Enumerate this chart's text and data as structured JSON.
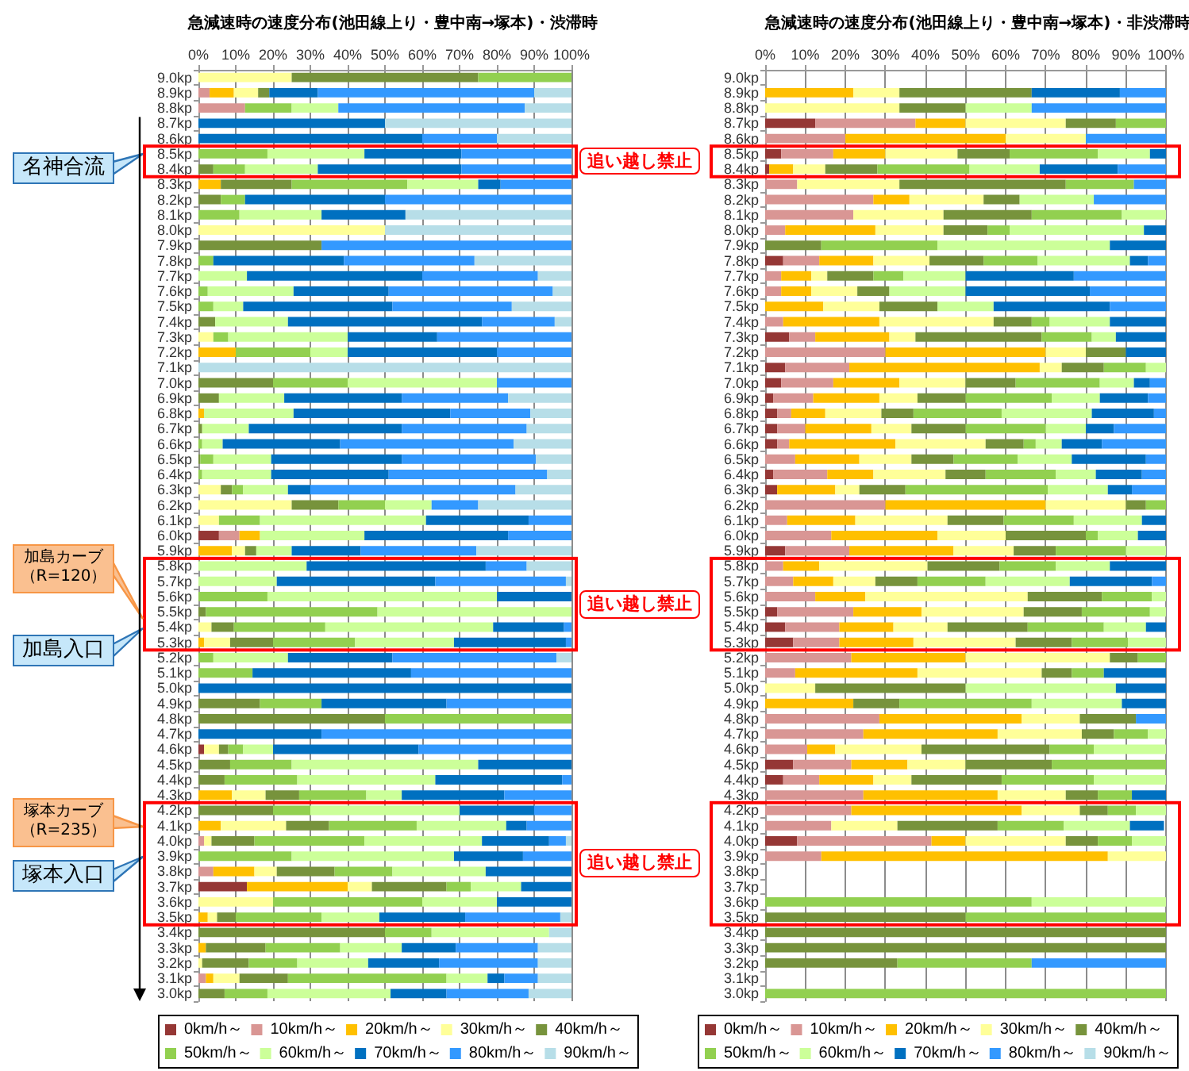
{
  "chart_data": [
    {
      "type": "bar",
      "orientation": "horizontal",
      "stacked": true,
      "title": "急減速時の速度分布(池田線上り・豊中南→塚本)・渋滞時",
      "categories": [
        "9.0kp",
        "8.9kp",
        "8.8kp",
        "8.7kp",
        "8.6kp",
        "8.5kp",
        "8.4kp",
        "8.3kp",
        "8.2kp",
        "8.1kp",
        "8.0kp",
        "7.9kp",
        "7.8kp",
        "7.7kp",
        "7.6kp",
        "7.5kp",
        "7.4kp",
        "7.3kp",
        "7.2kp",
        "7.1kp",
        "7.0kp",
        "6.9kp",
        "6.8kp",
        "6.7kp",
        "6.6kp",
        "6.5kp",
        "6.4kp",
        "6.3kp",
        "6.2kp",
        "6.1kp",
        "6.0kp",
        "5.9kp",
        "5.8kp",
        "5.7kp",
        "5.6kp",
        "5.5kp",
        "5.4kp",
        "5.3kp",
        "5.2kp",
        "5.1kp",
        "5.0kp",
        "4.9kp",
        "4.8kp",
        "4.7kp",
        "4.6kp",
        "4.5kp",
        "4.4kp",
        "4.3kp",
        "4.2kp",
        "4.1kp",
        "4.0kp",
        "3.9kp",
        "3.8kp",
        "3.7kp",
        "3.6kp",
        "3.5kp",
        "3.4kp",
        "3.3kp",
        "3.2kp",
        "3.1kp",
        "3.0kp"
      ],
      "series": [
        {
          "name": "0km/h～",
          "color": "#953735",
          "values": [
            0,
            0,
            0,
            0,
            0,
            0,
            0,
            0,
            0,
            0,
            0,
            0,
            0,
            0,
            0,
            0,
            0,
            0,
            0,
            0,
            0,
            0,
            0,
            0,
            0,
            0,
            0,
            0,
            0,
            0,
            5.5,
            0,
            0,
            0,
            0,
            0,
            0,
            0,
            0,
            0,
            0,
            0,
            0,
            0,
            1.5,
            0,
            0,
            0,
            0,
            0,
            0,
            0,
            0,
            13,
            0,
            0,
            0,
            0,
            0,
            0,
            0
          ]
        },
        {
          "name": "10km/h～",
          "color": "#d99694",
          "values": [
            0,
            3,
            12.5,
            0,
            0,
            0,
            0,
            0,
            0,
            0,
            0,
            0,
            0,
            0,
            0,
            0,
            0,
            0,
            0,
            0,
            0,
            0,
            0,
            0,
            0,
            0,
            0,
            0,
            0,
            0,
            5.5,
            0,
            0,
            0,
            0,
            0,
            0,
            0,
            0,
            0,
            0,
            0,
            0,
            0,
            0,
            0,
            0,
            0,
            0,
            0,
            1.5,
            0,
            4,
            0,
            0,
            0,
            0,
            0,
            0,
            2,
            0
          ]
        },
        {
          "name": "20km/h～",
          "color": "#ffc000",
          "values": [
            0,
            6.5,
            0,
            0,
            0,
            0,
            0,
            6,
            0,
            0,
            0,
            0,
            0,
            0,
            0,
            0,
            0,
            0,
            10,
            0,
            0,
            0,
            1.5,
            0,
            0,
            0,
            0,
            0,
            0,
            0,
            5.5,
            9,
            0,
            0,
            0,
            0,
            0,
            1.5,
            0,
            0,
            0,
            0,
            0,
            0,
            0,
            0,
            0,
            9,
            0,
            6,
            0,
            0,
            11,
            27,
            0,
            2.5,
            0,
            2,
            0,
            2,
            0
          ]
        },
        {
          "name": "30km/h～",
          "color": "#ffff99",
          "values": [
            25,
            6.5,
            0,
            0,
            0,
            0,
            0,
            0,
            0,
            0,
            50,
            0,
            0,
            0,
            0,
            0,
            0,
            4,
            0,
            0,
            0,
            0,
            0,
            0,
            0,
            0,
            0,
            6,
            25,
            5.5,
            0,
            3.5,
            0,
            0,
            0,
            0,
            3.5,
            7,
            0,
            0,
            0,
            0,
            0,
            0,
            4,
            0,
            0,
            9,
            0,
            17.5,
            2,
            0,
            6,
            6.5,
            20,
            2.5,
            0,
            0,
            1,
            7,
            0
          ]
        },
        {
          "name": "40km/h～",
          "color": "#77933c",
          "values": [
            50,
            3,
            0,
            0,
            0,
            0,
            4,
            19,
            6,
            0,
            0,
            33,
            0,
            0,
            0,
            0,
            4.5,
            0,
            0,
            0,
            20,
            5.5,
            0,
            1,
            0,
            0.5,
            0,
            3,
            12.5,
            0,
            0,
            3,
            0,
            0,
            0,
            2,
            6,
            11.5,
            0,
            0,
            0,
            16.5,
            50,
            0,
            2.5,
            8.5,
            7,
            9,
            20,
            11.5,
            11.5,
            0,
            15.5,
            20,
            0,
            5,
            50,
            16,
            12.5,
            13,
            7
          ]
        },
        {
          "name": "50km/h～",
          "color": "#92d050",
          "values": [
            25,
            0,
            12.5,
            0,
            0,
            18.5,
            8.5,
            31,
            6.5,
            11,
            0,
            0,
            4,
            0,
            2.5,
            4,
            0,
            4,
            20,
            0,
            20,
            0,
            0,
            0,
            1,
            3.5,
            1,
            3,
            12.5,
            11,
            0,
            0,
            0,
            0,
            18.5,
            46,
            24.5,
            22,
            4,
            14.5,
            0,
            16.5,
            50,
            0,
            4,
            16.5,
            19.5,
            18,
            10,
            23.5,
            29.5,
            25,
            15.5,
            6.5,
            40,
            23,
            12.5,
            20,
            13,
            42.5,
            11.5
          ]
        },
        {
          "name": "60km/h～",
          "color": "#ccff99",
          "values": [
            0,
            0,
            12.5,
            0,
            0,
            26,
            19.5,
            19,
            0,
            22,
            0,
            0,
            0,
            13,
            23,
            8,
            19.5,
            32,
            10,
            0,
            40,
            17.5,
            24,
            12.5,
            5.5,
            15.5,
            18.5,
            12,
            12.5,
            44.5,
            28,
            9.5,
            29,
            21,
            61.5,
            52,
            45,
            26.5,
            20,
            0,
            0,
            0,
            0,
            0,
            8,
            50,
            37,
            9.5,
            40,
            24,
            31.5,
            43.5,
            25,
            13.5,
            20,
            15.5,
            31.5,
            16.5,
            19,
            11,
            33
          ]
        },
        {
          "name": "70km/h～",
          "color": "#0070c0",
          "values": [
            0,
            13,
            0,
            50,
            60,
            26,
            38.5,
            6,
            37.5,
            22.5,
            0,
            0,
            35,
            47,
            25.5,
            40,
            52,
            24,
            40,
            0,
            0,
            31.5,
            42,
            41,
            31.5,
            35,
            31.5,
            6,
            0,
            27.5,
            38.5,
            18.5,
            48,
            42.5,
            20,
            0,
            19,
            30,
            28,
            42.5,
            100,
            33.5,
            0,
            33,
            39,
            25,
            34,
            27.5,
            20,
            5.5,
            18,
            18.5,
            23,
            13.5,
            20,
            23,
            0,
            14.5,
            19,
            4.5,
            15
          ]
        },
        {
          "name": "80km/h～",
          "color": "#3399ff",
          "values": [
            0,
            58,
            50,
            0,
            20,
            29.5,
            29.5,
            19,
            50,
            0,
            0,
            67,
            35,
            31,
            44,
            32,
            19.5,
            36,
            20,
            0,
            20,
            28.5,
            21.5,
            33.5,
            46.5,
            36,
            42.5,
            55,
            12.5,
            11.5,
            17,
            31,
            11,
            35,
            0,
            0,
            2,
            1.5,
            44,
            43,
            0,
            33.5,
            0,
            67,
            41,
            0,
            2.5,
            18,
            10,
            12,
            4.5,
            13,
            0,
            0,
            0,
            25.5,
            0,
            22,
            26.5,
            9,
            22
          ]
        },
        {
          "name": "90km/h～",
          "color": "#b7dee8",
          "values": [
            0,
            10,
            12.5,
            50,
            20,
            0,
            0,
            0,
            0,
            44.5,
            50,
            0,
            26,
            9,
            5,
            16,
            4.5,
            0,
            0,
            100,
            0,
            17,
            11,
            12,
            15.5,
            9.5,
            6.5,
            15,
            25,
            0,
            0,
            25.5,
            12,
            1.5,
            0,
            0,
            0,
            0,
            4,
            0,
            0,
            0,
            0,
            0,
            0,
            0,
            0,
            0,
            0,
            0,
            1.5,
            0,
            0,
            0,
            0,
            3,
            6,
            9,
            9,
            9,
            11.5
          ]
        }
      ],
      "xlim": [
        0,
        100
      ],
      "xticks": [
        {
          "value": 0,
          "label": "0%"
        },
        {
          "value": 10,
          "label": "10%"
        },
        {
          "value": 20,
          "label": "20%"
        },
        {
          "value": 30,
          "label": "30%"
        },
        {
          "value": 40,
          "label": "40%"
        },
        {
          "value": 50,
          "label": "50%"
        },
        {
          "value": 60,
          "label": "60%"
        },
        {
          "value": 70,
          "label": "70%"
        },
        {
          "value": 80,
          "label": "80%"
        },
        {
          "value": 90,
          "label": "90%"
        },
        {
          "value": 100,
          "label": "100%"
        }
      ],
      "grid": "x",
      "legend": "bottom",
      "annotations": [
        "名神合流",
        "加島カーブ（R=120）",
        "加島入口",
        "塚本カーブ（R=235）",
        "塚本入口",
        "追い越し禁止",
        "追い越し禁止",
        "追い越し禁止"
      ]
    },
    {
      "type": "bar",
      "orientation": "horizontal",
      "stacked": true,
      "title": "急減速時の速度分布(池田線上り・豊中南→塚本)・非渋滞時",
      "categories": [
        "9.0kp",
        "8.9kp",
        "8.8kp",
        "8.7kp",
        "8.6kp",
        "8.5kp",
        "8.4kp",
        "8.3kp",
        "8.2kp",
        "8.1kp",
        "8.0kp",
        "7.9kp",
        "7.8kp",
        "7.7kp",
        "7.6kp",
        "7.5kp",
        "7.4kp",
        "7.3kp",
        "7.2kp",
        "7.1kp",
        "7.0kp",
        "6.9kp",
        "6.8kp",
        "6.7kp",
        "6.6kp",
        "6.5kp",
        "6.4kp",
        "6.3kp",
        "6.2kp",
        "6.1kp",
        "6.0kp",
        "5.9kp",
        "5.8kp",
        "5.7kp",
        "5.6kp",
        "5.5kp",
        "5.4kp",
        "5.3kp",
        "5.2kp",
        "5.1kp",
        "5.0kp",
        "4.9kp",
        "4.8kp",
        "4.7kp",
        "4.6kp",
        "4.5kp",
        "4.4kp",
        "4.3kp",
        "4.2kp",
        "4.1kp",
        "4.0kp",
        "3.9kp",
        "3.8kp",
        "3.7kp",
        "3.6kp",
        "3.5kp",
        "3.4kp",
        "3.3kp",
        "3.2kp",
        "3.1kp",
        "3.0kp"
      ],
      "series": [
        {
          "name": "0km/h～",
          "color": "#953735",
          "values": [
            null,
            0,
            0,
            12.5,
            0,
            4,
            1,
            0,
            0,
            0,
            0,
            0,
            4.5,
            0,
            0,
            0,
            0,
            6,
            0,
            5,
            4,
            2,
            3,
            3,
            3,
            0,
            2,
            3,
            0,
            0,
            0,
            5,
            0,
            0,
            0,
            3,
            5,
            7,
            0,
            0,
            0,
            0,
            0,
            0,
            0,
            7,
            4.5,
            0,
            0,
            0,
            8,
            0,
            null,
            null,
            0,
            0,
            0,
            0,
            0,
            null,
            0
          ]
        },
        {
          "name": "10km/h～",
          "color": "#d99694",
          "values": [
            null,
            0,
            0,
            25,
            20,
            13,
            0,
            8,
            27,
            22,
            5,
            0,
            9,
            4,
            4,
            0,
            4.5,
            6.5,
            30,
            16,
            13,
            10,
            3.5,
            7,
            3,
            7.5,
            13.5,
            0,
            30,
            5.5,
            16.5,
            16,
            4.5,
            7,
            12.5,
            19,
            13.5,
            11.5,
            21.5,
            7.5,
            0,
            0,
            28.5,
            24.5,
            10.5,
            14.5,
            9,
            24.5,
            21.5,
            16.5,
            33.5,
            14,
            null,
            null,
            0,
            0,
            0,
            0,
            0,
            null,
            0
          ]
        },
        {
          "name": "20km/h～",
          "color": "#ffc000",
          "values": [
            null,
            22,
            0,
            12.5,
            40,
            13,
            6,
            0,
            9,
            0,
            22.5,
            0,
            13.5,
            7.5,
            7.5,
            14.5,
            24,
            18.5,
            40,
            47.5,
            16.5,
            16.5,
            8.5,
            16.5,
            26.5,
            16,
            11.5,
            14.5,
            40,
            17,
            26.5,
            26,
            9,
            10,
            12.5,
            17,
            13.5,
            18.5,
            28.5,
            30.5,
            0,
            22,
            35.5,
            33.5,
            7,
            14,
            13.5,
            33.5,
            42.5,
            0,
            8.5,
            71.5,
            null,
            null,
            0,
            0,
            0,
            0,
            0,
            null,
            0
          ]
        },
        {
          "name": "30km/h～",
          "color": "#ffff99",
          "values": [
            null,
            11.5,
            33.5,
            25,
            20,
            18,
            8,
            25.5,
            18.5,
            22.5,
            17,
            0,
            14,
            4,
            11.5,
            14,
            28.5,
            6.5,
            10,
            5.5,
            16.5,
            9.5,
            14,
            10,
            22.5,
            13,
            18,
            6,
            20,
            23,
            17,
            15,
            27,
            10.5,
            40.5,
            25.5,
            13.5,
            25.5,
            36,
            31,
            12.5,
            0,
            14.5,
            21,
            21.5,
            14.5,
            9.5,
            17,
            14.5,
            16.5,
            25,
            14.5,
            null,
            null,
            0,
            0,
            0,
            0,
            0,
            null,
            0
          ]
        },
        {
          "name": "40km/h～",
          "color": "#77933c",
          "values": [
            null,
            33,
            16.5,
            12.5,
            0,
            13,
            13,
            41.5,
            9,
            22,
            11,
            14,
            13.5,
            11.5,
            8,
            14.5,
            9.5,
            31.5,
            10,
            10.5,
            12.5,
            12,
            8,
            13.5,
            9.5,
            10.5,
            10,
            11.5,
            5,
            14,
            20,
            10.5,
            18,
            10.5,
            18.5,
            14.5,
            20,
            14,
            7,
            7.5,
            37.5,
            11.5,
            14,
            8,
            32,
            21.5,
            22.5,
            8,
            7,
            25,
            8,
            0,
            null,
            null,
            0,
            50,
            100,
            100,
            33,
            null,
            0
          ]
        },
        {
          "name": "50km/h～",
          "color": "#92d050",
          "values": [
            null,
            0,
            0,
            12.5,
            0,
            22,
            23,
            17,
            0,
            22.5,
            5.5,
            29,
            13.5,
            7.5,
            0,
            0,
            4.5,
            12.5,
            0,
            10.5,
            21,
            21.5,
            22,
            20,
            3,
            16,
            17.5,
            35.5,
            5,
            17.5,
            3,
            17.5,
            14,
            17,
            12.5,
            17,
            19,
            14,
            7,
            8,
            0,
            33,
            0,
            8.5,
            11,
            28.5,
            23,
            8.5,
            7,
            16.5,
            8.5,
            0,
            null,
            null,
            66.5,
            50,
            0,
            0,
            33.5,
            null,
            100
          ]
        },
        {
          "name": "60km/h～",
          "color": "#ccff99",
          "values": [
            null,
            0,
            16.5,
            0,
            0,
            13,
            17.5,
            0,
            18.5,
            11,
            33.5,
            43,
            23,
            15.5,
            19,
            14,
            15,
            6,
            0,
            5,
            8.5,
            12,
            22.5,
            10,
            6.5,
            13.5,
            10,
            15,
            0,
            17,
            10,
            10,
            13.5,
            21,
            3.5,
            4,
            10.5,
            9.5,
            0,
            0,
            37.5,
            22.5,
            0,
            4.5,
            18,
            0,
            18,
            0,
            7.5,
            16.5,
            8.5,
            0,
            null,
            null,
            33.5,
            0,
            0,
            0,
            0,
            null,
            0
          ]
        },
        {
          "name": "70km/h～",
          "color": "#0070c0",
          "values": [
            null,
            22,
            0,
            0,
            0,
            4,
            19.5,
            0,
            0,
            0,
            5.5,
            14,
            4.5,
            27,
            31,
            29,
            14,
            12.5,
            10,
            0,
            4,
            12,
            15.5,
            7,
            10,
            18.5,
            11.5,
            6,
            0,
            6,
            7,
            0,
            14,
            20.5,
            0,
            0,
            5,
            0,
            0,
            15.5,
            12.5,
            11,
            0,
            0,
            0,
            0,
            0,
            8.5,
            0,
            8.5,
            0,
            0,
            null,
            null,
            0,
            0,
            0,
            0,
            0,
            null,
            0
          ]
        },
        {
          "name": "80km/h～",
          "color": "#3399ff",
          "values": [
            null,
            11.5,
            33.5,
            0,
            20,
            0,
            12,
            8,
            18,
            0,
            0,
            0,
            4.5,
            23,
            19,
            14,
            0,
            0,
            0,
            0,
            4,
            4.5,
            3,
            13,
            16,
            5,
            6,
            8.5,
            0,
            0,
            0,
            0,
            0,
            3.5,
            0,
            0,
            0,
            0,
            0,
            0,
            0,
            0,
            7.5,
            0,
            0,
            0,
            0,
            0,
            0,
            0,
            0,
            0,
            null,
            null,
            0,
            0,
            0,
            0,
            33.5,
            null,
            0
          ]
        },
        {
          "name": "90km/h～",
          "color": "#b7dee8",
          "values": [
            null,
            0,
            0,
            0,
            0,
            0,
            0,
            0,
            0,
            0,
            0,
            0,
            0,
            0,
            0,
            0,
            0,
            0,
            0,
            0,
            0,
            0,
            0,
            0,
            0,
            0,
            0,
            0,
            0,
            0,
            0,
            0,
            0,
            0,
            0,
            0,
            0,
            0,
            0,
            0,
            0,
            0,
            0,
            0,
            0,
            0,
            0,
            0,
            0,
            0,
            0,
            0,
            null,
            null,
            0,
            0,
            0,
            0,
            0,
            null,
            0
          ]
        }
      ],
      "xlim": [
        0,
        100
      ],
      "xticks": [
        {
          "value": 0,
          "label": "0%"
        },
        {
          "value": 10,
          "label": "10%"
        },
        {
          "value": 20,
          "label": "20%"
        },
        {
          "value": 30,
          "label": "30%"
        },
        {
          "value": 40,
          "label": "40%"
        },
        {
          "value": 50,
          "label": "50%"
        },
        {
          "value": 60,
          "label": "60%"
        },
        {
          "value": 70,
          "label": "70%"
        },
        {
          "value": 80,
          "label": "80%"
        },
        {
          "value": 90,
          "label": "90%"
        },
        {
          "value": 100,
          "label": "100%"
        }
      ],
      "grid": "x",
      "legend": "bottom"
    }
  ]
}
